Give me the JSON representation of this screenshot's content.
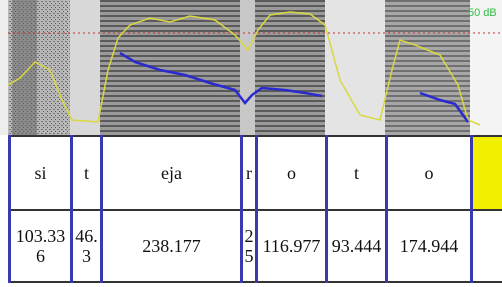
{
  "top_label": "50 dB",
  "segments": [
    {
      "label": "si",
      "duration": "103.336"
    },
    {
      "label": "t",
      "duration": "46.3"
    },
    {
      "label": "eja",
      "duration": "238.177"
    },
    {
      "label": "r",
      "duration": "25"
    },
    {
      "label": "o",
      "duration": "116.977"
    },
    {
      "label": "t",
      "duration": "93.444"
    },
    {
      "label": "o",
      "duration": "174.944"
    }
  ]
}
